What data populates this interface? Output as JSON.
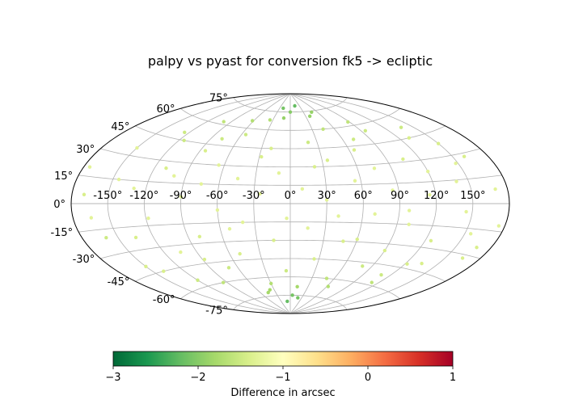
{
  "chart_data": {
    "type": "scatter",
    "projection": "aitoff",
    "title": "palpy vs pyast for conversion fk5 -> ecliptic",
    "grid": true,
    "lon_ticks": [
      -150,
      -120,
      -90,
      -60,
      -30,
      0,
      30,
      60,
      90,
      120,
      150
    ],
    "lat_ticks": [
      -75,
      -60,
      -45,
      -30,
      -15,
      0,
      15,
      30,
      45,
      60,
      75
    ],
    "lon_tick_labels": [
      "-150°",
      "-120°",
      "-90°",
      "-60°",
      "-30°",
      "0°",
      "30°",
      "60°",
      "90°",
      "120°",
      "150°"
    ],
    "lat_tick_labels": [
      "-75°",
      "-60°",
      "-45°",
      "-30°",
      "-15°",
      "0°",
      "15°",
      "30°",
      "45°",
      "60°",
      "75°"
    ],
    "colorbar": {
      "label": "Difference in arcsec",
      "min": -3,
      "max": 1,
      "ticks": [
        -3,
        -2,
        -1,
        0,
        1
      ],
      "tick_labels": [
        "−3",
        "−2",
        "−1",
        "0",
        "1"
      ],
      "colormap": "RdYlGn_r",
      "stops": [
        "#006837",
        "#1a9850",
        "#66bd63",
        "#a6d96a",
        "#d9ef8b",
        "#ffffbf",
        "#fee08b",
        "#fdae61",
        "#f46d43",
        "#d73027",
        "#a50026"
      ]
    },
    "points_description_note": null,
    "points": [
      [
        -170,
        5,
        -1.4
      ],
      [
        -160,
        -20,
        -1.5
      ],
      [
        -150,
        35,
        -1.3
      ],
      [
        -140,
        -45,
        -1.4
      ],
      [
        -130,
        10,
        -1.3
      ],
      [
        -125,
        50,
        -1.5
      ],
      [
        -118,
        -10,
        -1.3
      ],
      [
        -110,
        25,
        -1.4
      ],
      [
        -105,
        -35,
        -1.3
      ],
      [
        -100,
        62,
        -1.6
      ],
      [
        -95,
        -60,
        -1.6
      ],
      [
        -90,
        5,
        -1.3
      ],
      [
        -85,
        40,
        -1.4
      ],
      [
        -80,
        -25,
        -1.4
      ],
      [
        -75,
        15,
        -1.3
      ],
      [
        -70,
        -50,
        -1.5
      ],
      [
        -65,
        30,
        -1.3
      ],
      [
        -60,
        -5,
        -1.3
      ],
      [
        -55,
        55,
        -1.5
      ],
      [
        -50,
        -40,
        -1.4
      ],
      [
        -45,
        20,
        -1.3
      ],
      [
        -40,
        -15,
        -1.3
      ],
      [
        -35,
        68,
        -1.7
      ],
      [
        -30,
        -65,
        -1.7
      ],
      [
        -25,
        8,
        -1.3
      ],
      [
        -20,
        45,
        -1.4
      ],
      [
        -15,
        -30,
        -1.4
      ],
      [
        -10,
        25,
        -1.3
      ],
      [
        -5,
        -55,
        -1.5
      ],
      [
        0,
        75,
        -2.0
      ],
      [
        5,
        -75,
        -2.1
      ],
      [
        10,
        12,
        -1.3
      ],
      [
        15,
        -20,
        -1.3
      ],
      [
        20,
        50,
        -1.5
      ],
      [
        25,
        -45,
        -1.4
      ],
      [
        30,
        3,
        -1.3
      ],
      [
        35,
        35,
        -1.4
      ],
      [
        40,
        -10,
        -1.3
      ],
      [
        45,
        60,
        -1.6
      ],
      [
        50,
        -60,
        -1.6
      ],
      [
        55,
        18,
        -1.3
      ],
      [
        60,
        -28,
        -1.4
      ],
      [
        65,
        42,
        -1.4
      ],
      [
        70,
        -8,
        -1.3
      ],
      [
        75,
        27,
        -1.3
      ],
      [
        80,
        -48,
        -1.5
      ],
      [
        85,
        10,
        -1.3
      ],
      [
        90,
        -35,
        -1.4
      ],
      [
        95,
        55,
        -1.5
      ],
      [
        100,
        -15,
        -1.3
      ],
      [
        105,
        32,
        -1.4
      ],
      [
        110,
        -52,
        -1.5
      ],
      [
        115,
        6,
        -1.3
      ],
      [
        120,
        22,
        -1.3
      ],
      [
        125,
        -25,
        -1.4
      ],
      [
        130,
        45,
        -1.4
      ],
      [
        135,
        -40,
        -1.4
      ],
      [
        140,
        14,
        -1.3
      ],
      [
        145,
        -5,
        -1.3
      ],
      [
        150,
        38,
        -1.4
      ],
      [
        155,
        -18,
        -1.3
      ],
      [
        160,
        28,
        -1.4
      ],
      [
        165,
        -32,
        -1.4
      ],
      [
        170,
        8,
        -1.3
      ],
      [
        175,
        -12,
        -1.3
      ],
      [
        -175,
        20,
        -1.3
      ],
      [
        -165,
        -8,
        -1.3
      ],
      [
        -145,
        15,
        -1.3
      ],
      [
        -135,
        -22,
        -1.4
      ],
      [
        -115,
        45,
        -1.5
      ],
      [
        -88,
        -42,
        -1.4
      ],
      [
        -62,
        66,
        -1.7
      ],
      [
        -38,
        -70,
        -1.8
      ],
      [
        -12,
        70,
        -1.9
      ],
      [
        12,
        -68,
        -1.8
      ],
      [
        38,
        71,
        -1.9
      ],
      [
        62,
        -66,
        -1.7
      ],
      [
        88,
        63,
        -1.6
      ],
      [
        112,
        -58,
        -1.6
      ],
      [
        138,
        52,
        -1.5
      ],
      [
        -20,
        78,
        -2.1
      ],
      [
        15,
        80,
        -2.2
      ],
      [
        -10,
        -80,
        -2.2
      ],
      [
        20,
        -77,
        -2.1
      ],
      [
        -45,
        -72,
        -1.8
      ],
      [
        48,
        74,
        -1.9
      ],
      [
        -150,
        -40,
        -1.4
      ],
      [
        -120,
        -55,
        -1.5
      ],
      [
        -100,
        20,
        -1.3
      ],
      [
        -78,
        50,
        -1.5
      ],
      [
        -52,
        -20,
        -1.3
      ],
      [
        -28,
        38,
        -1.4
      ],
      [
        -3,
        -12,
        -1.3
      ],
      [
        22,
        30,
        -1.4
      ],
      [
        48,
        -30,
        -1.4
      ],
      [
        72,
        50,
        -1.5
      ],
      [
        98,
        -5,
        -1.3
      ],
      [
        122,
        -42,
        -1.4
      ],
      [
        148,
        25,
        -1.3
      ],
      [
        168,
        -25,
        -1.4
      ]
    ]
  }
}
